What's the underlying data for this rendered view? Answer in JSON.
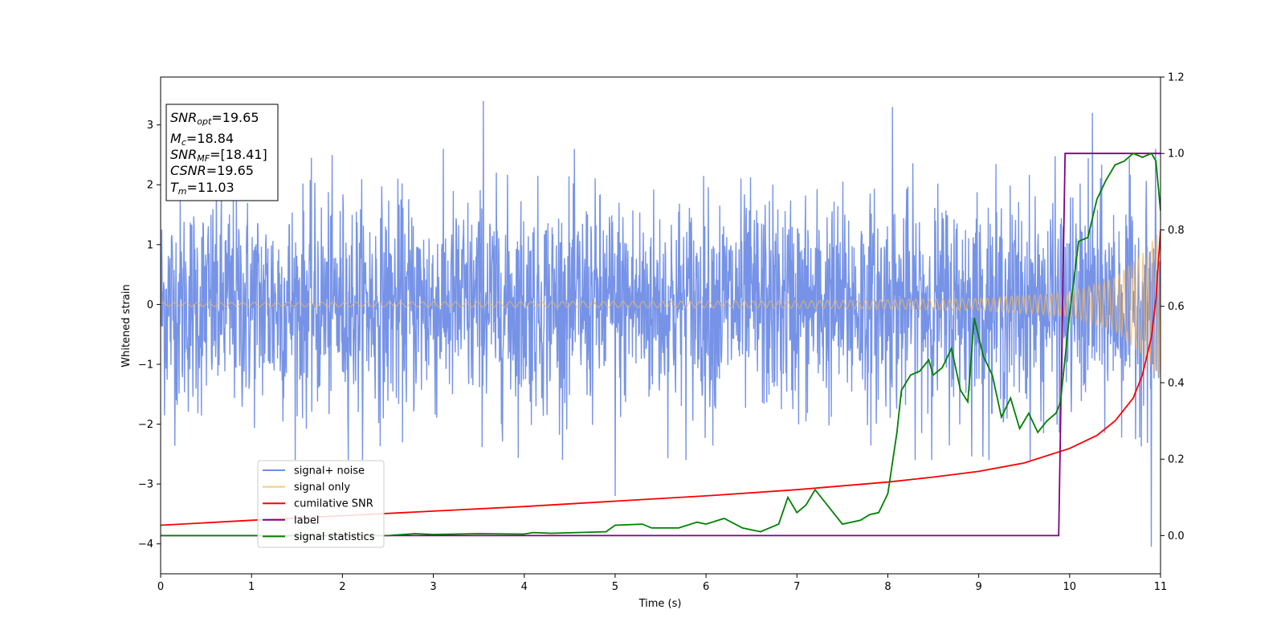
{
  "chart_data": {
    "type": "line",
    "xlabel": "Time (s)",
    "ylabel": "Whitened strain",
    "xlim": [
      0,
      11
    ],
    "ylim": [
      -4.5,
      3.8
    ],
    "y2lim": [
      -0.1,
      1.2
    ],
    "xticks": [
      0,
      1,
      2,
      3,
      4,
      5,
      6,
      7,
      8,
      9,
      10,
      11
    ],
    "yticks": [
      -4,
      -3,
      -2,
      -1,
      0,
      1,
      2,
      3
    ],
    "yticks_labels": [
      "−4",
      "−3",
      "−2",
      "−1",
      "0",
      "1",
      "2",
      "3"
    ],
    "y2ticks": [
      0.0,
      0.2,
      0.4,
      0.6,
      0.8,
      1.0,
      1.2
    ],
    "y2ticks_labels": [
      "0.0",
      "0.2",
      "0.4",
      "0.6",
      "0.8",
      "1.0",
      "1.2"
    ],
    "legend_position": "lower-left",
    "grid": false,
    "stats_box": {
      "snr_opt": {
        "sym": "SNR",
        "sub": "opt",
        "value": "=19.65"
      },
      "mc": {
        "sym": "M",
        "sub": "c",
        "value": "=18.84"
      },
      "snr_mf": {
        "sym": "SNR",
        "sub": "MF",
        "value": "=[18.41]"
      },
      "csnr": {
        "sym": "CSNR",
        "sub": "",
        "value": "=19.65"
      },
      "tm": {
        "sym": "T",
        "sub": "m",
        "value": "=11.03"
      }
    },
    "series": [
      {
        "name": "signal+ noise",
        "color": "#6f8de6",
        "axis": "left",
        "description_only": true,
        "typical_band": [
          -1.7,
          1.7
        ],
        "notable_peaks": [
          {
            "x": 3.55,
            "y": 3.4
          },
          {
            "x": 8.05,
            "y": 3.3
          },
          {
            "x": 10.25,
            "y": 3.2
          },
          {
            "x": 10.9,
            "y": -4.05
          },
          {
            "x": 5.0,
            "y": -3.2
          }
        ]
      },
      {
        "name": "signal only",
        "color": "#f5b55a",
        "axis": "left",
        "description_only": true,
        "envelope": [
          {
            "x": 0,
            "amp": 0.03
          },
          {
            "x": 7,
            "amp": 0.06
          },
          {
            "x": 9,
            "amp": 0.1
          },
          {
            "x": 10,
            "amp": 0.2
          },
          {
            "x": 10.5,
            "amp": 0.45
          },
          {
            "x": 10.8,
            "amp": 0.85
          },
          {
            "x": 11,
            "amp": 1.25
          }
        ]
      },
      {
        "name": "cumilative SNR",
        "color": "#ff0000",
        "axis": "right",
        "points": [
          [
            0,
            0.027
          ],
          [
            1,
            0.04
          ],
          [
            2,
            0.052
          ],
          [
            3,
            0.064
          ],
          [
            4,
            0.076
          ],
          [
            5,
            0.09
          ],
          [
            6,
            0.104
          ],
          [
            7,
            0.12
          ],
          [
            8,
            0.14
          ],
          [
            8.5,
            0.153
          ],
          [
            9,
            0.168
          ],
          [
            9.5,
            0.19
          ],
          [
            10,
            0.228
          ],
          [
            10.3,
            0.262
          ],
          [
            10.5,
            0.3
          ],
          [
            10.7,
            0.36
          ],
          [
            10.8,
            0.42
          ],
          [
            10.9,
            0.52
          ],
          [
            10.95,
            0.62
          ],
          [
            11,
            0.8
          ]
        ]
      },
      {
        "name": "label",
        "color": "#800080",
        "axis": "right",
        "points": [
          [
            0,
            0.0
          ],
          [
            9.88,
            0.0
          ],
          [
            9.95,
            1.0
          ],
          [
            11,
            1.0
          ]
        ]
      },
      {
        "name": "signal statistics",
        "color": "#008000",
        "axis": "right",
        "points": [
          [
            0,
            0.0
          ],
          [
            2.5,
            0.0
          ],
          [
            2.8,
            0.005
          ],
          [
            3.0,
            0.003
          ],
          [
            3.5,
            0.005
          ],
          [
            4.0,
            0.004
          ],
          [
            4.1,
            0.008
          ],
          [
            4.3,
            0.006
          ],
          [
            4.9,
            0.01
          ],
          [
            5.0,
            0.027
          ],
          [
            5.3,
            0.03
          ],
          [
            5.4,
            0.02
          ],
          [
            5.7,
            0.02
          ],
          [
            5.9,
            0.035
          ],
          [
            6.0,
            0.03
          ],
          [
            6.2,
            0.045
          ],
          [
            6.4,
            0.02
          ],
          [
            6.6,
            0.01
          ],
          [
            6.8,
            0.03
          ],
          [
            6.9,
            0.1
          ],
          [
            7.0,
            0.06
          ],
          [
            7.1,
            0.08
          ],
          [
            7.2,
            0.12
          ],
          [
            7.3,
            0.09
          ],
          [
            7.5,
            0.03
          ],
          [
            7.7,
            0.04
          ],
          [
            7.8,
            0.055
          ],
          [
            7.9,
            0.06
          ],
          [
            8.0,
            0.11
          ],
          [
            8.1,
            0.27
          ],
          [
            8.15,
            0.38
          ],
          [
            8.25,
            0.42
          ],
          [
            8.35,
            0.43
          ],
          [
            8.45,
            0.46
          ],
          [
            8.5,
            0.42
          ],
          [
            8.6,
            0.44
          ],
          [
            8.7,
            0.49
          ],
          [
            8.8,
            0.38
          ],
          [
            8.88,
            0.35
          ],
          [
            8.95,
            0.57
          ],
          [
            9.05,
            0.47
          ],
          [
            9.15,
            0.42
          ],
          [
            9.25,
            0.31
          ],
          [
            9.35,
            0.36
          ],
          [
            9.45,
            0.28
          ],
          [
            9.55,
            0.32
          ],
          [
            9.65,
            0.27
          ],
          [
            9.75,
            0.3
          ],
          [
            9.85,
            0.32
          ],
          [
            9.9,
            0.35
          ],
          [
            10.0,
            0.58
          ],
          [
            10.1,
            0.77
          ],
          [
            10.2,
            0.78
          ],
          [
            10.3,
            0.88
          ],
          [
            10.4,
            0.93
          ],
          [
            10.5,
            0.97
          ],
          [
            10.6,
            0.98
          ],
          [
            10.7,
            1.0
          ],
          [
            10.8,
            0.99
          ],
          [
            10.9,
            1.0
          ],
          [
            10.95,
            0.98
          ],
          [
            11.0,
            0.85
          ]
        ]
      }
    ]
  }
}
